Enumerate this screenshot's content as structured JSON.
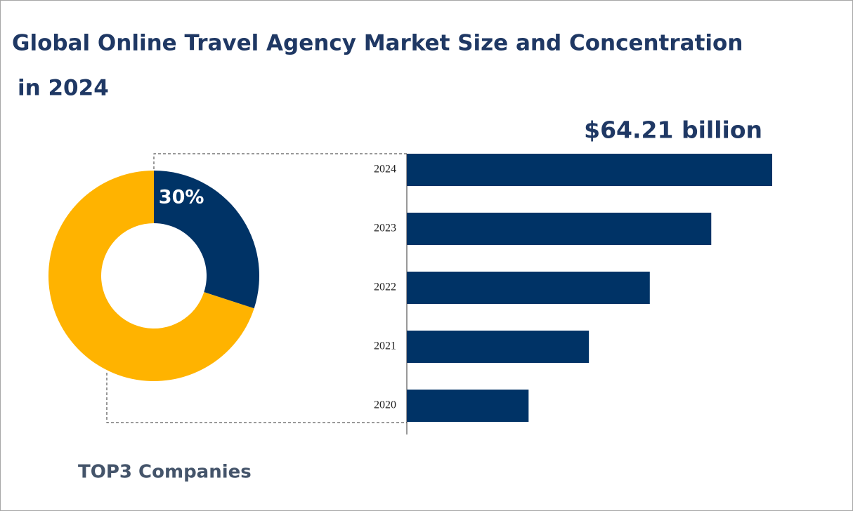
{
  "title": [
    "Global Online Travel Agency Market Size and Concentration",
    "in 2024"
  ],
  "chart_data": [
    {
      "type": "pie",
      "donut": true,
      "label": "TOP3 Companies",
      "values": [
        30,
        70
      ],
      "value_labels": [
        "30%",
        null
      ],
      "colors": [
        "#003366",
        "#ffb300"
      ]
    },
    {
      "type": "bar",
      "orientation": "horizontal",
      "categories": [
        "2024",
        "2023",
        "2022",
        "2021",
        "2020"
      ],
      "values": [
        64.21,
        53.5,
        42.7,
        32.0,
        21.4
      ],
      "value_labels": [
        "$64.21 billion",
        null,
        null,
        null,
        null
      ],
      "color": "#003366"
    }
  ]
}
